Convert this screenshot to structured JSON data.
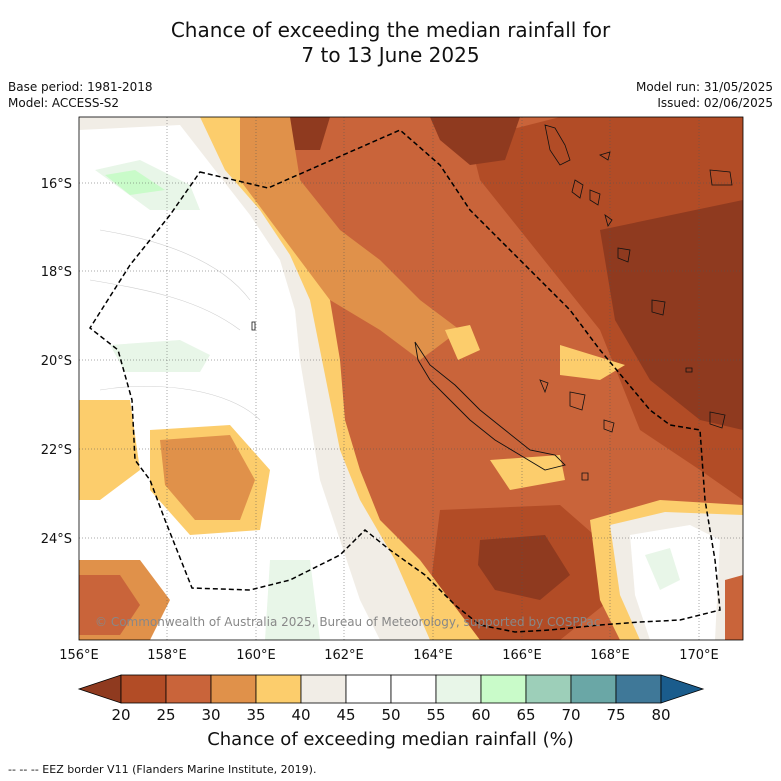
{
  "title_line1": "Chance of exceeding the median rainfall for",
  "title_line2": "7 to 13 June 2025",
  "base_period": "Base period: 1981-2018",
  "model": "Model: ACCESS-S2",
  "model_run": "Model run: 31/05/2025",
  "issued": "Issued: 02/06/2025",
  "copyright": "© Commonwealth of Australia 2025, Bureau of Meteorology, supported by COSPPac",
  "lat_labels": [
    "16°S",
    "18°S",
    "20°S",
    "22°S",
    "24°S"
  ],
  "lon_labels": [
    "156°E",
    "158°E",
    "160°E",
    "162°E",
    "164°E",
    "166°E",
    "168°E",
    "170°E"
  ],
  "colorbar": {
    "ticks": [
      "20",
      "25",
      "30",
      "35",
      "40",
      "45",
      "50",
      "55",
      "60",
      "65",
      "70",
      "75",
      "80"
    ],
    "colors": [
      "#8f3a1f",
      "#b24c26",
      "#c9643a",
      "#e0914a",
      "#fccd6c",
      "#f1ede6",
      "#ffffff",
      "#ffffff",
      "#e8f6e8",
      "#c9fbc9",
      "#9dcfb9",
      "#6aa7a6",
      "#3f7898",
      "#1a5c8c"
    ],
    "label": "Chance of exceeding median rainfall (%)"
  },
  "footnote": "-- -- -- EEZ border V11 (Flanders Marine Institute, 2019)."
}
